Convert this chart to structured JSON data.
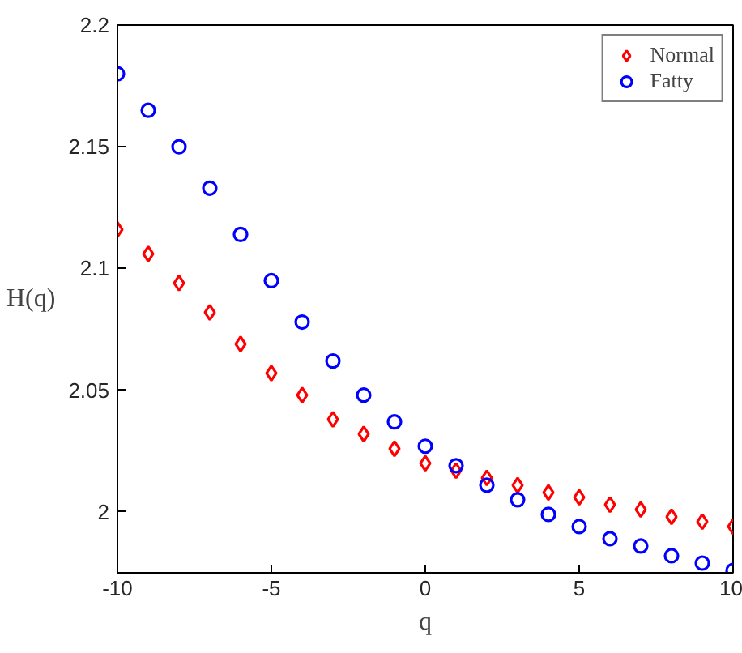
{
  "chart_data": {
    "type": "scatter",
    "xlabel": "q",
    "ylabel": "H(q)",
    "x": [
      -10,
      -9,
      -8,
      -7,
      -6,
      -5,
      -4,
      -3,
      -2,
      -1,
      0,
      1,
      2,
      3,
      4,
      5,
      6,
      7,
      8,
      9,
      10
    ],
    "series": [
      {
        "name": "Normal",
        "color": "#ff0000",
        "marker": "diamond",
        "values": [
          2.116,
          2.106,
          2.094,
          2.082,
          2.069,
          2.057,
          2.048,
          2.038,
          2.032,
          2.026,
          2.02,
          2.017,
          2.014,
          2.011,
          2.008,
          2.006,
          2.003,
          2.001,
          1.998,
          1.996,
          1.994
        ]
      },
      {
        "name": "Fatty",
        "color": "#0000ff",
        "marker": "circle",
        "values": [
          2.18,
          2.165,
          2.15,
          2.133,
          2.114,
          2.095,
          2.078,
          2.062,
          2.048,
          2.037,
          2.027,
          2.019,
          2.011,
          2.005,
          1.999,
          1.994,
          1.989,
          1.986,
          1.982,
          1.979,
          1.976
        ]
      }
    ],
    "xlim": [
      -10,
      10
    ],
    "ylim": [
      1.975,
      2.2
    ],
    "xticks": [
      -10,
      -5,
      0,
      5,
      10
    ],
    "yticks": [
      2,
      2.05,
      2.1,
      2.15,
      2.2
    ],
    "grid": false,
    "legend": "top right"
  }
}
